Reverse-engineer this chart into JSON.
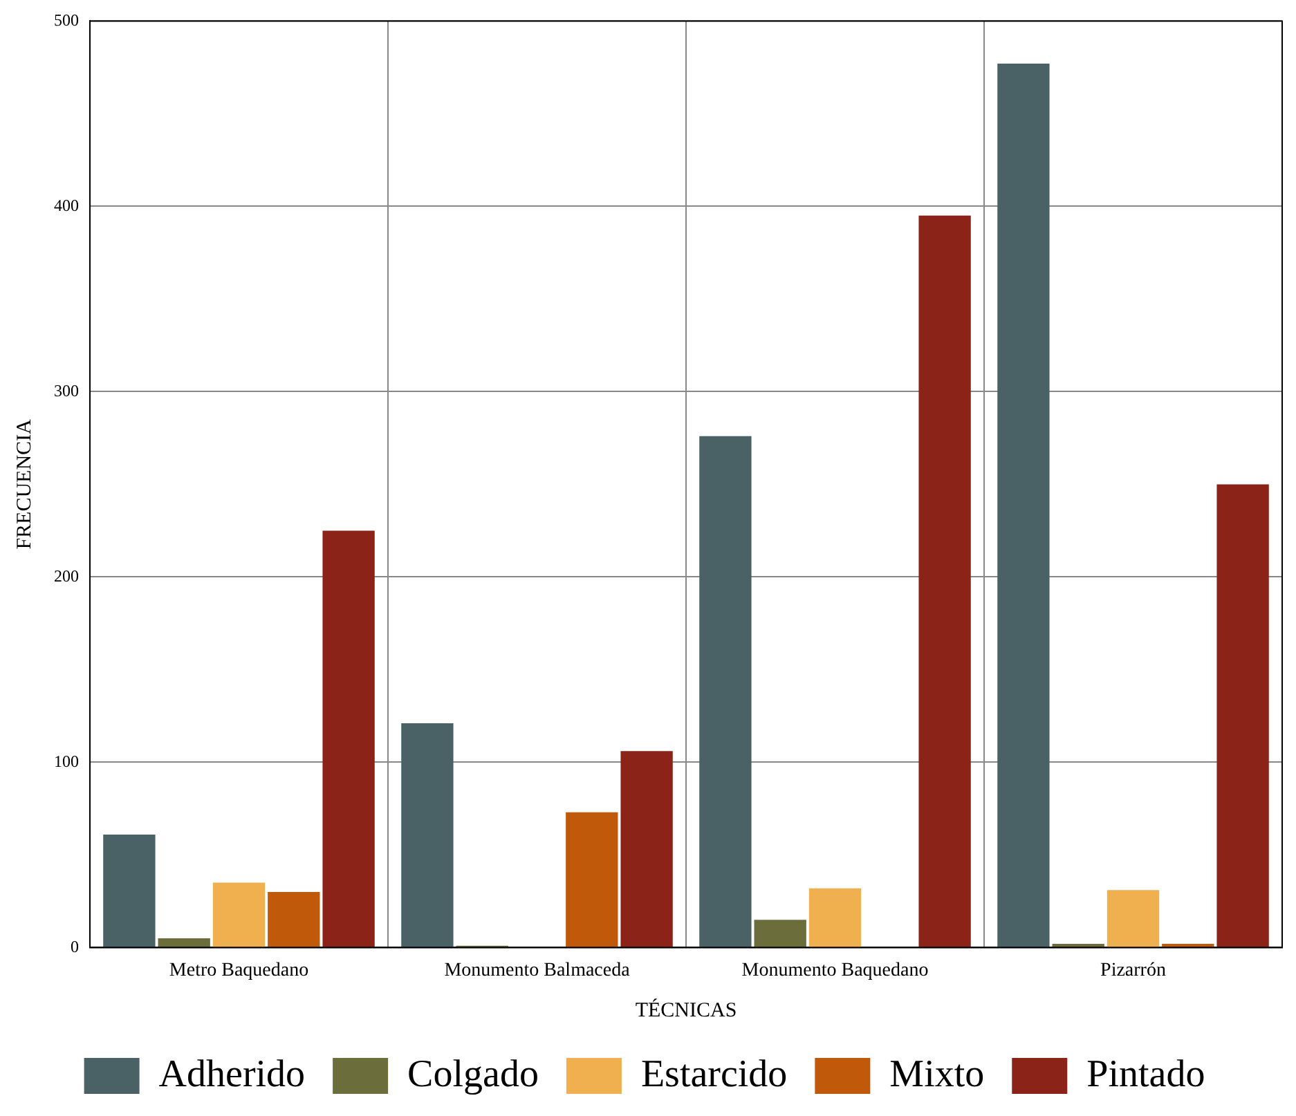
{
  "chart_data": {
    "type": "bar",
    "xlabel": "TÉCNICAS",
    "ylabel": "FRECUENCIA",
    "categories": [
      "Metro Baquedano",
      "Monumento Balmaceda",
      "Monumento Baquedano",
      "Pizarrón"
    ],
    "series": [
      {
        "name": "Adherido",
        "color": "#4a6266",
        "values": [
          61,
          121,
          276,
          477
        ]
      },
      {
        "name": "Colgado",
        "color": "#6b6e3a",
        "values": [
          5,
          1,
          15,
          2
        ]
      },
      {
        "name": "Estarcido",
        "color": "#f0b050",
        "values": [
          35,
          0,
          32,
          31
        ]
      },
      {
        "name": "Mixto",
        "color": "#c05a0a",
        "values": [
          30,
          73,
          0,
          2
        ]
      },
      {
        "name": "Pintado",
        "color": "#8b2318",
        "values": [
          225,
          106,
          395,
          250
        ]
      }
    ],
    "ylim": [
      0,
      500
    ],
    "yticks": [
      0,
      100,
      200,
      300,
      400,
      500
    ],
    "grid": true,
    "legend": "bottom"
  }
}
